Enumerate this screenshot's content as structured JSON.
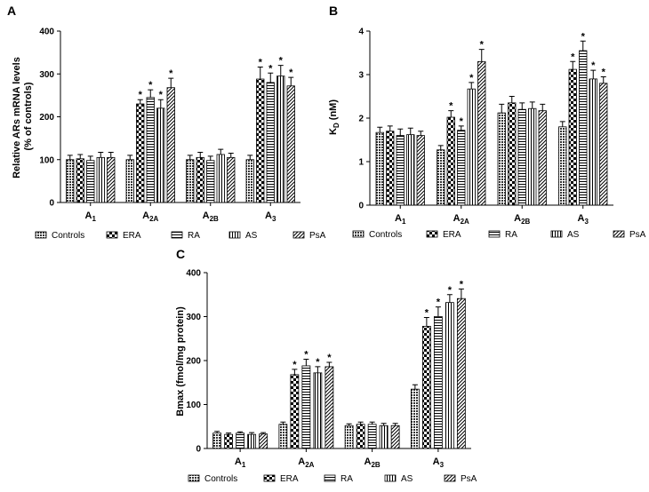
{
  "figure": {
    "legend_items": [
      "Controls",
      "ERA",
      "RA",
      "AS",
      "PsA"
    ],
    "colors": {
      "axis": "#000000",
      "bar_stroke": "#000000",
      "background": "#ffffff"
    },
    "patterns": [
      "dense-dots-dark",
      "checkerboard",
      "horizontal-lines",
      "vertical-lines",
      "diagonal-lines"
    ]
  },
  "chart_data": [
    {
      "panel_label": "A",
      "type": "bar",
      "title": "",
      "ylabel_lines": [
        "Relative ARs mRNA levels",
        "(% of controls)"
      ],
      "xlabel": "",
      "ylim": [
        0,
        400
      ],
      "yticks": [
        0,
        100,
        200,
        300,
        400
      ],
      "categories": [
        {
          "base": "A",
          "sub": "1"
        },
        {
          "base": "A",
          "sub": "2A"
        },
        {
          "base": "A",
          "sub": "2B"
        },
        {
          "base": "A",
          "sub": "3"
        }
      ],
      "series": [
        {
          "name": "Controls",
          "values": [
            100,
            100,
            100,
            100
          ],
          "errors": [
            10,
            10,
            10,
            10
          ],
          "sig": [
            false,
            false,
            false,
            false
          ]
        },
        {
          "name": "ERA",
          "values": [
            102,
            230,
            105,
            288
          ],
          "errors": [
            10,
            10,
            12,
            28
          ],
          "sig": [
            false,
            true,
            false,
            true
          ]
        },
        {
          "name": "RA",
          "values": [
            98,
            245,
            98,
            280
          ],
          "errors": [
            10,
            18,
            10,
            22
          ],
          "sig": [
            false,
            true,
            false,
            true
          ]
        },
        {
          "name": "AS",
          "values": [
            105,
            220,
            112,
            295
          ],
          "errors": [
            12,
            20,
            12,
            25
          ],
          "sig": [
            false,
            true,
            false,
            true
          ]
        },
        {
          "name": "PsA",
          "values": [
            105,
            268,
            105,
            272
          ],
          "errors": [
            12,
            22,
            10,
            20
          ],
          "sig": [
            false,
            true,
            false,
            true
          ]
        }
      ],
      "sig_marker": "*"
    },
    {
      "panel_label": "B",
      "type": "bar",
      "title": "",
      "ylabel": {
        "base": "K",
        "sub": "D",
        "rest": " (nM)"
      },
      "xlabel": "",
      "ylim": [
        0,
        4
      ],
      "yticks": [
        0,
        1,
        2,
        3,
        4
      ],
      "categories": [
        {
          "base": "A",
          "sub": "1"
        },
        {
          "base": "A",
          "sub": "2A"
        },
        {
          "base": "A",
          "sub": "2B"
        },
        {
          "base": "A",
          "sub": "3"
        }
      ],
      "series": [
        {
          "name": "Controls",
          "values": [
            1.67,
            1.27,
            2.12,
            1.8
          ],
          "errors": [
            0.12,
            0.1,
            0.2,
            0.12
          ],
          "sig": [
            false,
            false,
            false,
            false
          ]
        },
        {
          "name": "ERA",
          "values": [
            1.7,
            2.02,
            2.35,
            3.12
          ],
          "errors": [
            0.12,
            0.15,
            0.15,
            0.18
          ],
          "sig": [
            false,
            true,
            false,
            true
          ]
        },
        {
          "name": "RA",
          "values": [
            1.6,
            1.72,
            2.2,
            3.55
          ],
          "errors": [
            0.15,
            0.1,
            0.15,
            0.22
          ],
          "sig": [
            false,
            true,
            false,
            true
          ]
        },
        {
          "name": "AS",
          "values": [
            1.62,
            2.67,
            2.22,
            2.9
          ],
          "errors": [
            0.15,
            0.15,
            0.15,
            0.2
          ],
          "sig": [
            false,
            true,
            false,
            true
          ]
        },
        {
          "name": "PsA",
          "values": [
            1.6,
            3.3,
            2.17,
            2.8
          ],
          "errors": [
            0.1,
            0.28,
            0.15,
            0.15
          ],
          "sig": [
            false,
            true,
            false,
            true
          ]
        }
      ],
      "sig_marker": "*"
    },
    {
      "panel_label": "C",
      "type": "bar",
      "title": "",
      "ylabel": "Bmax (fmol/mg protein)",
      "xlabel": "",
      "ylim": [
        0,
        400
      ],
      "yticks": [
        0,
        100,
        200,
        300,
        400
      ],
      "categories": [
        {
          "base": "A",
          "sub": "1"
        },
        {
          "base": "A",
          "sub": "2A"
        },
        {
          "base": "A",
          "sub": "2B"
        },
        {
          "base": "A",
          "sub": "3"
        }
      ],
      "series": [
        {
          "name": "Controls",
          "values": [
            35,
            55,
            52,
            135
          ],
          "errors": [
            4,
            5,
            4,
            10
          ],
          "sig": [
            false,
            false,
            false,
            false
          ]
        },
        {
          "name": "ERA",
          "values": [
            32,
            168,
            55,
            278
          ],
          "errors": [
            3,
            12,
            5,
            20
          ],
          "sig": [
            false,
            true,
            false,
            true
          ]
        },
        {
          "name": "RA",
          "values": [
            35,
            188,
            55,
            300
          ],
          "errors": [
            3,
            15,
            5,
            22
          ],
          "sig": [
            false,
            true,
            false,
            true
          ]
        },
        {
          "name": "AS",
          "values": [
            32,
            172,
            52,
            332
          ],
          "errors": [
            4,
            14,
            5,
            18
          ],
          "sig": [
            false,
            true,
            false,
            true
          ]
        },
        {
          "name": "PsA",
          "values": [
            33,
            186,
            52,
            341
          ],
          "errors": [
            3,
            10,
            5,
            22
          ],
          "sig": [
            false,
            true,
            false,
            true
          ]
        }
      ],
      "sig_marker": "*"
    }
  ]
}
